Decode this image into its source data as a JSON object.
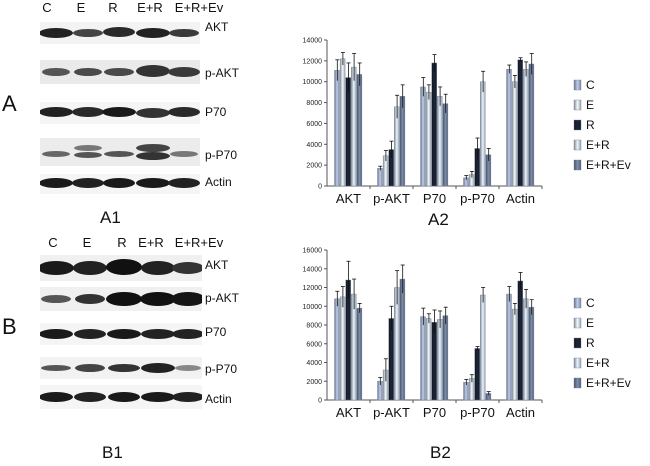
{
  "figure": {
    "panel_A_letter": "A",
    "panel_B_letter": "B",
    "labels": {
      "A1": "A1",
      "A2": "A2",
      "B1": "B1",
      "B2": "B2"
    }
  },
  "blots": {
    "A": {
      "lanes": [
        "C",
        "E",
        "R",
        "E+R",
        "E+R+Ev"
      ],
      "bands": [
        "AKT",
        "p-AKT",
        "P70",
        "p-P70",
        "Actin"
      ]
    },
    "B": {
      "lanes": [
        "C",
        "E",
        "R",
        "E+R",
        "E+R+Ev"
      ],
      "bands": [
        "AKT",
        "p-AKT",
        "P70",
        "p-P70",
        "Actin"
      ]
    }
  },
  "colors": {
    "C": "#a9b8d6",
    "E": "#d6e0f0",
    "R": "#1a2233",
    "E+R": "#cfdcef",
    "E+R+Ev": "#6f809c"
  },
  "chart_data": [
    {
      "type": "bar",
      "id": "A2",
      "categories": [
        "AKT",
        "p-AKT",
        "P70",
        "p-P70",
        "Actin"
      ],
      "ylim": [
        0,
        14000
      ],
      "yticks": [
        "0",
        "2000",
        "4000",
        "6000",
        "8000",
        "10000",
        "12000",
        "14000"
      ],
      "series": [
        {
          "name": "C",
          "values": [
            11100,
            1700,
            9500,
            800,
            11200
          ],
          "errors": [
            1000,
            200,
            900,
            200,
            400
          ]
        },
        {
          "name": "E",
          "values": [
            12200,
            2900,
            9000,
            1100,
            10000
          ],
          "errors": [
            600,
            500,
            700,
            300,
            600
          ]
        },
        {
          "name": "R",
          "values": [
            10400,
            3500,
            11800,
            3600,
            12100
          ],
          "errors": [
            1400,
            800,
            800,
            1000,
            200
          ]
        },
        {
          "name": "E+R",
          "values": [
            11400,
            7600,
            8600,
            10000,
            11200
          ],
          "errors": [
            1300,
            1100,
            900,
            1000,
            700
          ]
        },
        {
          "name": "E+R+Ev",
          "values": [
            10700,
            8600,
            7900,
            3000,
            11700
          ],
          "errors": [
            1100,
            1100,
            900,
            600,
            1000
          ]
        }
      ]
    },
    {
      "type": "bar",
      "id": "B2",
      "categories": [
        "AKT",
        "p-AKT",
        "P70",
        "p-P70",
        "Actin"
      ],
      "ylim": [
        0,
        16000
      ],
      "yticks": [
        "0",
        "2000",
        "4000",
        "6000",
        "8000",
        "10000",
        "12000",
        "14000",
        "16000"
      ],
      "series": [
        {
          "name": "C",
          "values": [
            10800,
            2000,
            8900,
            1900,
            11300
          ],
          "errors": [
            800,
            400,
            900,
            300,
            800
          ]
        },
        {
          "name": "E",
          "values": [
            11000,
            3200,
            8700,
            2300,
            9700
          ],
          "errors": [
            1100,
            1200,
            500,
            400,
            600
          ]
        },
        {
          "name": "R",
          "values": [
            12800,
            8700,
            8300,
            5500,
            12700
          ],
          "errors": [
            2000,
            1300,
            1300,
            200,
            900
          ]
        },
        {
          "name": "E+R",
          "values": [
            11300,
            12000,
            8600,
            11200,
            10800
          ],
          "errors": [
            1600,
            1800,
            900,
            800,
            1000
          ]
        },
        {
          "name": "E+R+Ev",
          "values": [
            9800,
            12900,
            9000,
            700,
            9900
          ],
          "errors": [
            500,
            1500,
            900,
            200,
            800
          ]
        }
      ]
    }
  ]
}
